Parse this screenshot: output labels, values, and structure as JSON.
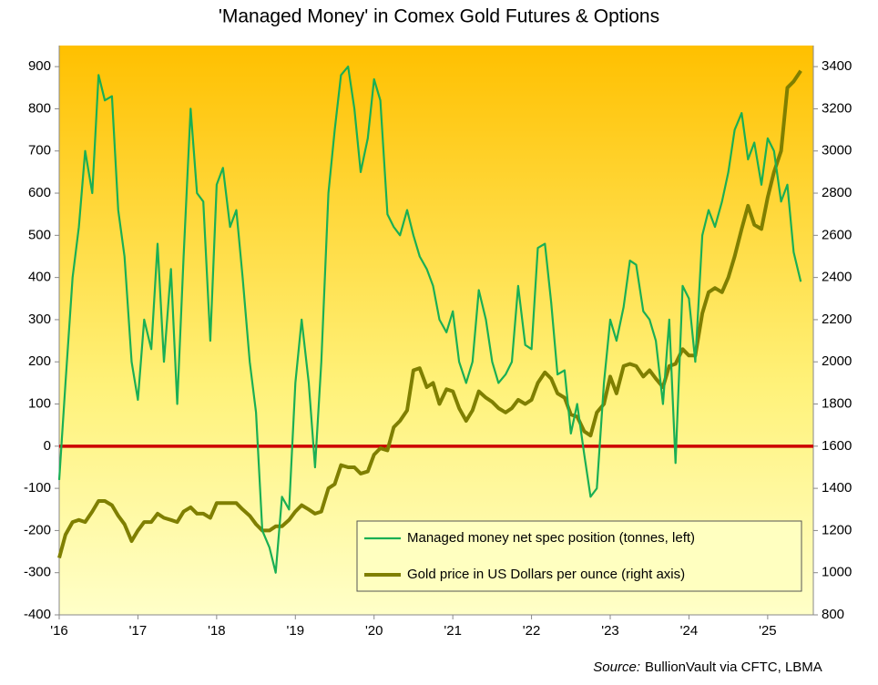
{
  "chart_data": {
    "type": "line",
    "title": "'Managed Money' in Comex Gold Futures & Options",
    "source_label": "Source:",
    "source": "BullionVault via CFTC, LBMA",
    "x": [
      2016,
      2016.08,
      2016.17,
      2016.25,
      2016.33,
      2016.42,
      2016.5,
      2016.58,
      2016.67,
      2016.75,
      2016.83,
      2016.92,
      2017,
      2017.08,
      2017.17,
      2017.25,
      2017.33,
      2017.42,
      2017.5,
      2017.58,
      2017.67,
      2017.75,
      2017.83,
      2017.92,
      2018,
      2018.08,
      2018.17,
      2018.25,
      2018.33,
      2018.42,
      2018.5,
      2018.58,
      2018.67,
      2018.75,
      2018.83,
      2018.92,
      2019,
      2019.08,
      2019.17,
      2019.25,
      2019.33,
      2019.42,
      2019.5,
      2019.58,
      2019.67,
      2019.75,
      2019.83,
      2019.92,
      2020,
      2020.08,
      2020.17,
      2020.25,
      2020.33,
      2020.42,
      2020.5,
      2020.58,
      2020.67,
      2020.75,
      2020.83,
      2020.92,
      2021,
      2021.08,
      2021.17,
      2021.25,
      2021.33,
      2021.42,
      2021.5,
      2021.58,
      2021.67,
      2021.75,
      2021.83,
      2021.92,
      2022,
      2022.08,
      2022.17,
      2022.25,
      2022.33,
      2022.42,
      2022.5,
      2022.58,
      2022.67,
      2022.75,
      2022.83,
      2022.92,
      2023,
      2023.08,
      2023.17,
      2023.25,
      2023.33,
      2023.42,
      2023.5,
      2023.58,
      2023.67,
      2023.75,
      2023.83,
      2023.92,
      2024,
      2024.08,
      2024.17,
      2024.25,
      2024.33,
      2024.42,
      2024.5,
      2024.58,
      2024.67,
      2024.75,
      2024.83,
      2024.92,
      2025,
      2025.08,
      2025.17,
      2025.25,
      2025.33,
      2025.42
    ],
    "series": [
      {
        "name": "Managed money net spec position (tonnes, left)",
        "color": "#1aaf54",
        "axis": "y",
        "values": [
          -80,
          150,
          400,
          520,
          700,
          600,
          880,
          820,
          830,
          560,
          450,
          200,
          110,
          300,
          230,
          480,
          200,
          420,
          100,
          450,
          800,
          600,
          580,
          250,
          620,
          660,
          520,
          560,
          400,
          200,
          80,
          -200,
          -240,
          -300,
          -120,
          -150,
          150,
          300,
          150,
          -50,
          200,
          600,
          750,
          880,
          900,
          800,
          650,
          730,
          870,
          820,
          550,
          520,
          500,
          560,
          500,
          450,
          420,
          380,
          300,
          270,
          320,
          200,
          150,
          200,
          370,
          300,
          200,
          150,
          170,
          200,
          380,
          240,
          230,
          470,
          480,
          340,
          170,
          180,
          30,
          100,
          -20,
          -120,
          -100,
          150,
          300,
          250,
          330,
          440,
          430,
          320,
          300,
          250,
          100,
          300,
          -40,
          380,
          350,
          200,
          500,
          560,
          520,
          580,
          650,
          750,
          790,
          680,
          720,
          620,
          730,
          700,
          580,
          620,
          460,
          390
        ]
      },
      {
        "name": "Gold price in US Dollars per ounce (right axis)",
        "color": "#7f7f00",
        "axis": "y2",
        "values": [
          1070,
          1180,
          1240,
          1250,
          1240,
          1290,
          1340,
          1340,
          1320,
          1270,
          1230,
          1150,
          1200,
          1240,
          1240,
          1280,
          1260,
          1250,
          1240,
          1290,
          1310,
          1280,
          1280,
          1260,
          1330,
          1330,
          1330,
          1330,
          1300,
          1270,
          1230,
          1200,
          1200,
          1220,
          1220,
          1250,
          1290,
          1320,
          1300,
          1280,
          1290,
          1400,
          1420,
          1510,
          1500,
          1500,
          1470,
          1480,
          1560,
          1590,
          1580,
          1690,
          1720,
          1770,
          1960,
          1970,
          1880,
          1900,
          1800,
          1870,
          1860,
          1780,
          1720,
          1770,
          1860,
          1830,
          1810,
          1780,
          1760,
          1780,
          1820,
          1800,
          1820,
          1900,
          1950,
          1920,
          1850,
          1830,
          1750,
          1740,
          1670,
          1650,
          1760,
          1800,
          1930,
          1850,
          1980,
          1990,
          1980,
          1930,
          1960,
          1920,
          1880,
          1980,
          1990,
          2060,
          2030,
          2030,
          2230,
          2330,
          2350,
          2330,
          2400,
          2500,
          2630,
          2740,
          2650,
          2630,
          2780,
          2900,
          3000,
          3300,
          3330,
          3380
        ]
      }
    ],
    "xlim": [
      2016,
      2025.58
    ],
    "xticks": [
      {
        "value": 2016,
        "label": "'16"
      },
      {
        "value": 2017,
        "label": "'17"
      },
      {
        "value": 2018,
        "label": "'18"
      },
      {
        "value": 2019,
        "label": "'19"
      },
      {
        "value": 2020,
        "label": "'20"
      },
      {
        "value": 2021,
        "label": "'21"
      },
      {
        "value": 2022,
        "label": "'22"
      },
      {
        "value": 2023,
        "label": "'23"
      },
      {
        "value": 2024,
        "label": "'24"
      },
      {
        "value": 2025,
        "label": "'25"
      }
    ],
    "ylim": [
      -400,
      950
    ],
    "yticks": [
      -400,
      -300,
      -200,
      -100,
      0,
      100,
      200,
      300,
      400,
      500,
      600,
      700,
      800,
      900
    ],
    "y2lim": [
      800,
      3500
    ],
    "y2ticks": [
      800,
      1000,
      1200,
      1400,
      1600,
      1800,
      2000,
      2200,
      2400,
      2600,
      2800,
      3000,
      3200,
      3400
    ],
    "reference_line": {
      "value": 0,
      "color": "#cc0000"
    },
    "grid": false
  }
}
